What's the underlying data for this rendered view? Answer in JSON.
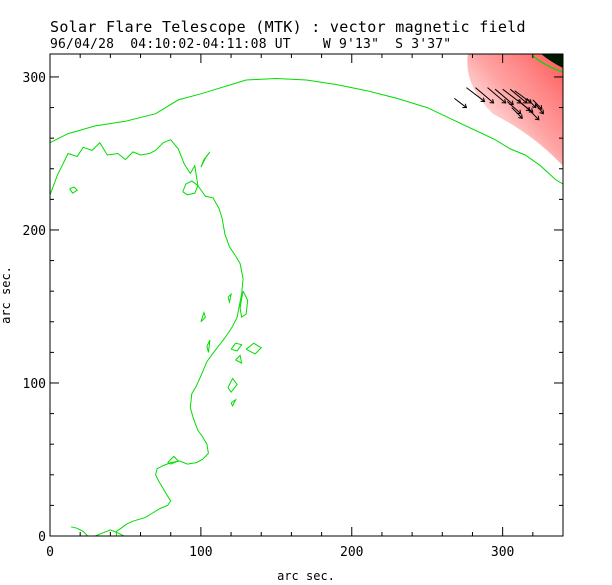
{
  "header": {
    "title": "Solar Flare Telescope (MTK) : vector magnetic field",
    "subtitle": "96/04/28  04:10:02-04:11:08 UT    W 9'13\"  S 3'37\""
  },
  "colors": {
    "contour": "#00dd00",
    "field_region": "#ff6b6b",
    "vectors": "#000000",
    "axes": "#000000"
  },
  "chart_data": {
    "type": "contour",
    "xlabel": "arc sec.",
    "ylabel": "arc sec.",
    "xlim": [
      0,
      340
    ],
    "ylim": [
      0,
      315
    ],
    "x_ticks": [
      0,
      100,
      200,
      300
    ],
    "y_ticks": [
      0,
      100,
      200,
      300
    ],
    "grid": false,
    "series": [
      {
        "points": [
          [
            0,
            257
          ],
          [
            12,
            263
          ],
          [
            30,
            268
          ],
          [
            50,
            271
          ],
          [
            70,
            276
          ],
          [
            85,
            285
          ],
          [
            100,
            289
          ],
          [
            110,
            292
          ],
          [
            120,
            295
          ],
          [
            130,
            298
          ],
          [
            150,
            299
          ],
          [
            170,
            298
          ],
          [
            190,
            295
          ],
          [
            210,
            291
          ],
          [
            230,
            286
          ],
          [
            250,
            280
          ],
          [
            265,
            273
          ],
          [
            280,
            266
          ],
          [
            295,
            259
          ],
          [
            305,
            253
          ],
          [
            315,
            249
          ],
          [
            325,
            242
          ],
          [
            335,
            233
          ],
          [
            340,
            230
          ]
        ]
      },
      {
        "points": [
          [
            0,
            223
          ],
          [
            5,
            236
          ],
          [
            12,
            250
          ],
          [
            18,
            248
          ],
          [
            22,
            254
          ],
          [
            28,
            252
          ],
          [
            33,
            257
          ],
          [
            38,
            249
          ],
          [
            45,
            250
          ],
          [
            50,
            246
          ],
          [
            55,
            251
          ],
          [
            60,
            249
          ],
          [
            66,
            250
          ],
          [
            70,
            252
          ],
          [
            75,
            257
          ],
          [
            80,
            259
          ],
          [
            85,
            253
          ],
          [
            89,
            243
          ],
          [
            93,
            237
          ],
          [
            96,
            242
          ],
          [
            98,
            229
          ],
          [
            103,
            222
          ],
          [
            108,
            221
          ],
          [
            112,
            214
          ],
          [
            114,
            208
          ],
          [
            116,
            197
          ],
          [
            119,
            189
          ],
          [
            123,
            183
          ],
          [
            126,
            178
          ],
          [
            128,
            168
          ],
          [
            127,
            158
          ],
          [
            124,
            143
          ],
          [
            121,
            137
          ],
          [
            117,
            131
          ],
          [
            114,
            127
          ],
          [
            110,
            122
          ],
          [
            107,
            118
          ],
          [
            104,
            114
          ],
          [
            101,
            107
          ],
          [
            97,
            98
          ],
          [
            94,
            93
          ],
          [
            93,
            84
          ],
          [
            95,
            77
          ],
          [
            98,
            69
          ],
          [
            101,
            65
          ],
          [
            104,
            60
          ],
          [
            105,
            54
          ],
          [
            101,
            50
          ],
          [
            97,
            48
          ],
          [
            91,
            47
          ],
          [
            86,
            49
          ],
          [
            80,
            48
          ],
          [
            75,
            46
          ],
          [
            71,
            44
          ],
          [
            70,
            40
          ],
          [
            72,
            36
          ],
          [
            75,
            31
          ],
          [
            78,
            26
          ],
          [
            80,
            23
          ],
          [
            78,
            20
          ],
          [
            73,
            18
          ],
          [
            68,
            15
          ],
          [
            63,
            12
          ],
          [
            56,
            10
          ],
          [
            51,
            8
          ],
          [
            47,
            5
          ],
          [
            44,
            3
          ],
          [
            44,
            1
          ],
          [
            44,
            0
          ]
        ]
      },
      {
        "points": [
          [
            13,
            227
          ],
          [
            15,
            224
          ],
          [
            18,
            226
          ],
          [
            16,
            228
          ],
          [
            13,
            227
          ]
        ]
      },
      {
        "points": [
          [
            88,
            225
          ],
          [
            90,
            230
          ],
          [
            94,
            232
          ],
          [
            98,
            229
          ],
          [
            96,
            224
          ],
          [
            91,
            223
          ],
          [
            88,
            225
          ]
        ]
      },
      {
        "points": [
          [
            100,
            241
          ],
          [
            103,
            247
          ],
          [
            106,
            251
          ],
          [
            102,
            246
          ],
          [
            100,
            241
          ]
        ]
      },
      {
        "points": [
          [
            128,
            160
          ],
          [
            131,
            154
          ],
          [
            130,
            145
          ],
          [
            127,
            143
          ],
          [
            126,
            149
          ],
          [
            127,
            155
          ],
          [
            128,
            160
          ]
        ]
      },
      {
        "points": [
          [
            100,
            140
          ],
          [
            103,
            143
          ],
          [
            102,
            146
          ],
          [
            100,
            140
          ]
        ]
      },
      {
        "points": [
          [
            104,
            124
          ],
          [
            106,
            128
          ],
          [
            105,
            120
          ],
          [
            104,
            124
          ]
        ]
      },
      {
        "points": [
          [
            120,
            122
          ],
          [
            123,
            126
          ],
          [
            127,
            125
          ],
          [
            124,
            121
          ],
          [
            120,
            122
          ]
        ]
      },
      {
        "points": [
          [
            130,
            122
          ],
          [
            135,
            126
          ],
          [
            140,
            123
          ],
          [
            136,
            119
          ],
          [
            130,
            122
          ]
        ]
      },
      {
        "points": [
          [
            123,
            115
          ],
          [
            126,
            118
          ],
          [
            127,
            113
          ],
          [
            123,
            115
          ]
        ]
      },
      {
        "points": [
          [
            118,
            97
          ],
          [
            121,
            103
          ],
          [
            124,
            99
          ],
          [
            120,
            94
          ],
          [
            118,
            97
          ]
        ]
      },
      {
        "points": [
          [
            120,
            87
          ],
          [
            123,
            89
          ],
          [
            121,
            85
          ],
          [
            120,
            87
          ]
        ]
      },
      {
        "points": [
          [
            78,
            48
          ],
          [
            82,
            52
          ],
          [
            85,
            49
          ],
          [
            80,
            47
          ],
          [
            78,
            48
          ]
        ]
      },
      {
        "points": [
          [
            14,
            6
          ],
          [
            18,
            5
          ],
          [
            22,
            3
          ],
          [
            25,
            0
          ]
        ]
      },
      {
        "points": [
          [
            30,
            0
          ],
          [
            35,
            2
          ],
          [
            40,
            4
          ],
          [
            45,
            2
          ],
          [
            49,
            0
          ]
        ]
      },
      {
        "points": [
          [
            118,
            156
          ],
          [
            120,
            158
          ],
          [
            119,
            153
          ],
          [
            118,
            156
          ]
        ]
      }
    ],
    "vectors": [
      [
        268,
        286,
        276,
        280
      ],
      [
        276,
        293,
        288,
        284
      ],
      [
        282,
        293,
        294,
        283
      ],
      [
        290,
        293,
        302,
        283
      ],
      [
        295,
        292,
        307,
        282
      ],
      [
        300,
        292,
        312,
        283
      ],
      [
        305,
        292,
        316,
        283
      ],
      [
        308,
        291,
        319,
        283
      ],
      [
        303,
        284,
        312,
        276
      ],
      [
        310,
        285,
        318,
        278
      ],
      [
        306,
        280,
        313,
        273
      ],
      [
        312,
        283,
        320,
        277
      ],
      [
        316,
        286,
        322,
        280
      ],
      [
        320,
        285,
        326,
        279
      ],
      [
        318,
        278,
        324,
        272
      ],
      [
        322,
        282,
        327,
        276
      ]
    ]
  }
}
